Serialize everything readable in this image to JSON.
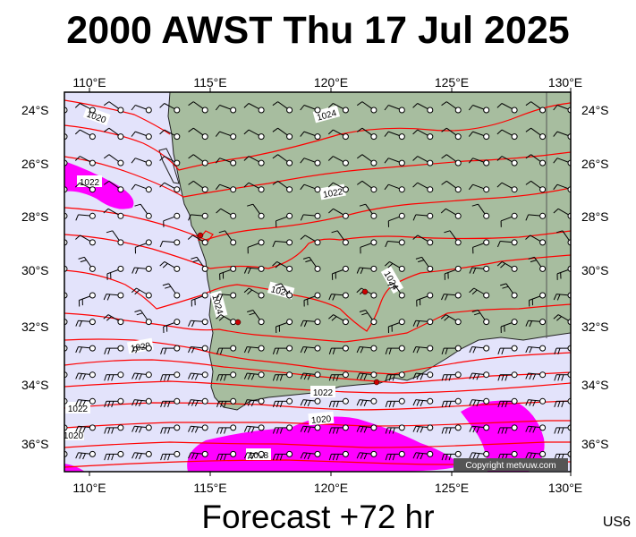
{
  "title": "2000 AWST Thu 17 Jul 2025",
  "footer": "Forecast +72 hr",
  "region_code": "US6",
  "copyright": "Copyright metvuw.com",
  "colors": {
    "ocean": "#e3e3fb",
    "land": "#a7bd9f",
    "isobar": "#ff0000",
    "strong_wind": "#ff00ff",
    "frame": "#000000"
  },
  "longitude_labels": [
    "110°E",
    "115°E",
    "120°E",
    "125°E",
    "130°E"
  ],
  "latitude_labels": [
    "24°S",
    "26°S",
    "28°S",
    "30°S",
    "32°S",
    "34°S",
    "36°S"
  ],
  "isobar_labels": [
    "1020",
    "1022",
    "1024",
    "1022",
    "1024",
    "1024",
    "1024",
    "1020",
    "1022",
    "1022",
    "1020",
    "1018",
    "1020"
  ],
  "wind_symbols": "barbs with circle station markers",
  "cities_shown": 4
}
